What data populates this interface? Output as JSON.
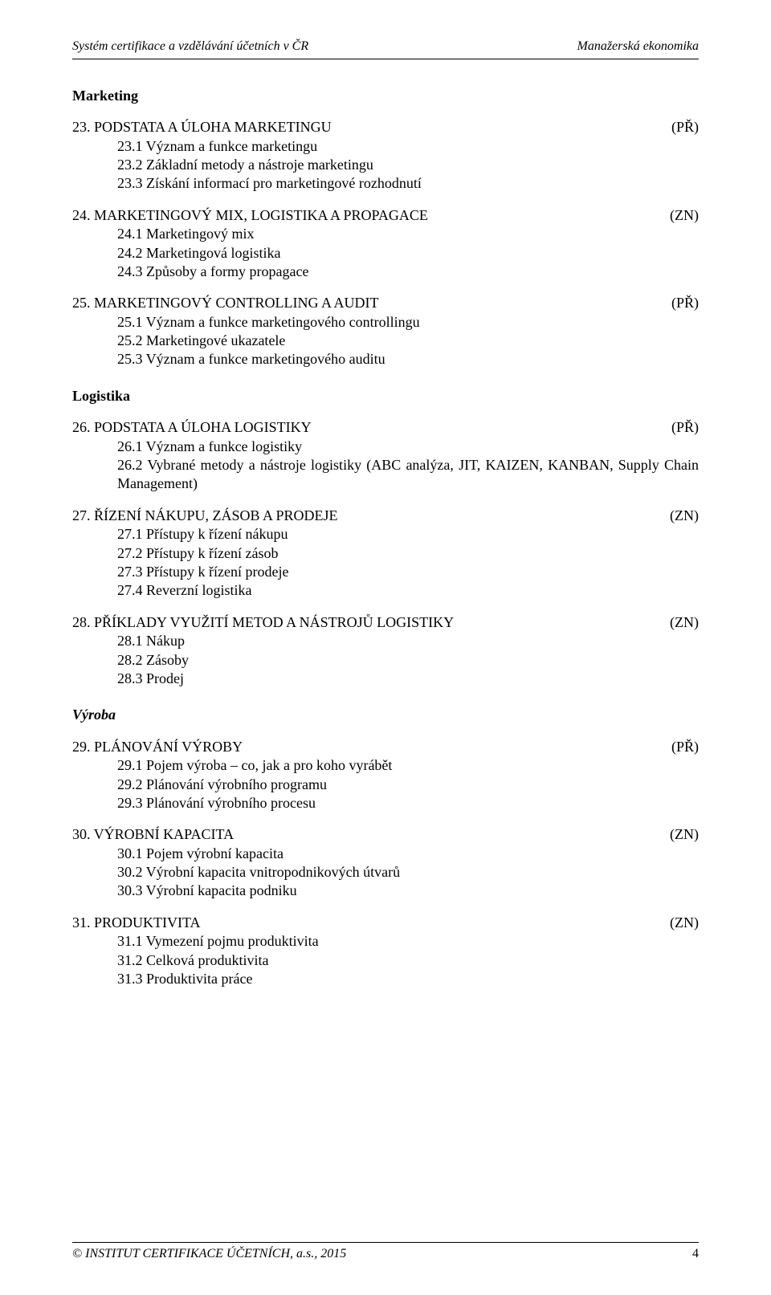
{
  "header": {
    "left": "Systém certifikace a vzdělávání účetních v ČR",
    "right": "Manažerská ekonomika"
  },
  "sections": {
    "s1": "Marketing",
    "s2": "Logistika",
    "s3": "Výroba"
  },
  "t23": {
    "title": "23. PODSTATA A ÚLOHA MARKETINGU",
    "tag": "(PŘ)",
    "a": "23.1 Význam a funkce marketingu",
    "b": "23.2 Základní metody a nástroje marketingu",
    "c": "23.3 Získání informací pro marketingové rozhodnutí"
  },
  "t24": {
    "title": "24. MARKETINGOVÝ MIX, LOGISTIKA A PROPAGACE",
    "tag": "(ZN)",
    "a": "24.1 Marketingový mix",
    "b": "24.2 Marketingová logistika",
    "c": "24.3 Způsoby a formy propagace"
  },
  "t25": {
    "title": "25. MARKETINGOVÝ CONTROLLING A AUDIT",
    "tag": "(PŘ)",
    "a": "25.1 Význam a funkce marketingového controllingu",
    "b": "25.2 Marketingové ukazatele",
    "c": "25.3 Význam a funkce marketingového auditu"
  },
  "t26": {
    "title": "26. PODSTATA A ÚLOHA LOGISTIKY",
    "tag": "(PŘ)",
    "a": "26.1 Význam a funkce logistiky",
    "b": "26.2 Vybrané metody a nástroje logistiky (ABC analýza, JIT, KAIZEN, KANBAN, Supply Chain Management)"
  },
  "t27": {
    "title": "27. ŘÍZENÍ NÁKUPU, ZÁSOB A PRODEJE",
    "tag": "(ZN)",
    "a": "27.1 Přístupy k řízení nákupu",
    "b": "27.2 Přístupy k řízení zásob",
    "c": "27.3 Přístupy k řízení prodeje",
    "d": "27.4 Reverzní logistika"
  },
  "t28": {
    "title": "28. PŘÍKLADY VYUŽITÍ METOD A NÁSTROJŮ LOGISTIKY",
    "tag": "(ZN)",
    "a": "28.1 Nákup",
    "b": "28.2 Zásoby",
    "c": "28.3 Prodej"
  },
  "t29": {
    "title": "29. PLÁNOVÁNÍ VÝROBY",
    "tag": "(PŘ)",
    "a": "29.1 Pojem výroba – co, jak a pro koho vyrábět",
    "b": "29.2 Plánování výrobního programu",
    "c": "29.3 Plánování výrobního procesu"
  },
  "t30": {
    "title": "30. VÝROBNÍ KAPACITA",
    "tag": "(ZN)",
    "a": "30.1 Pojem výrobní kapacita",
    "b": "30.2 Výrobní kapacita vnitropodnikových útvarů",
    "c": "30.3 Výrobní kapacita podniku"
  },
  "t31": {
    "title": " 31. PRODUKTIVITA",
    "tag": "(ZN)",
    "a": "31.1 Vymezení pojmu produktivita",
    "b": "31.2 Celková produktivita",
    "c": "31.3 Produktivita práce"
  },
  "footer": {
    "left": "© INSTITUT CERTIFIKACE ÚČETNÍCH, a.s., 2015",
    "page": "4"
  }
}
